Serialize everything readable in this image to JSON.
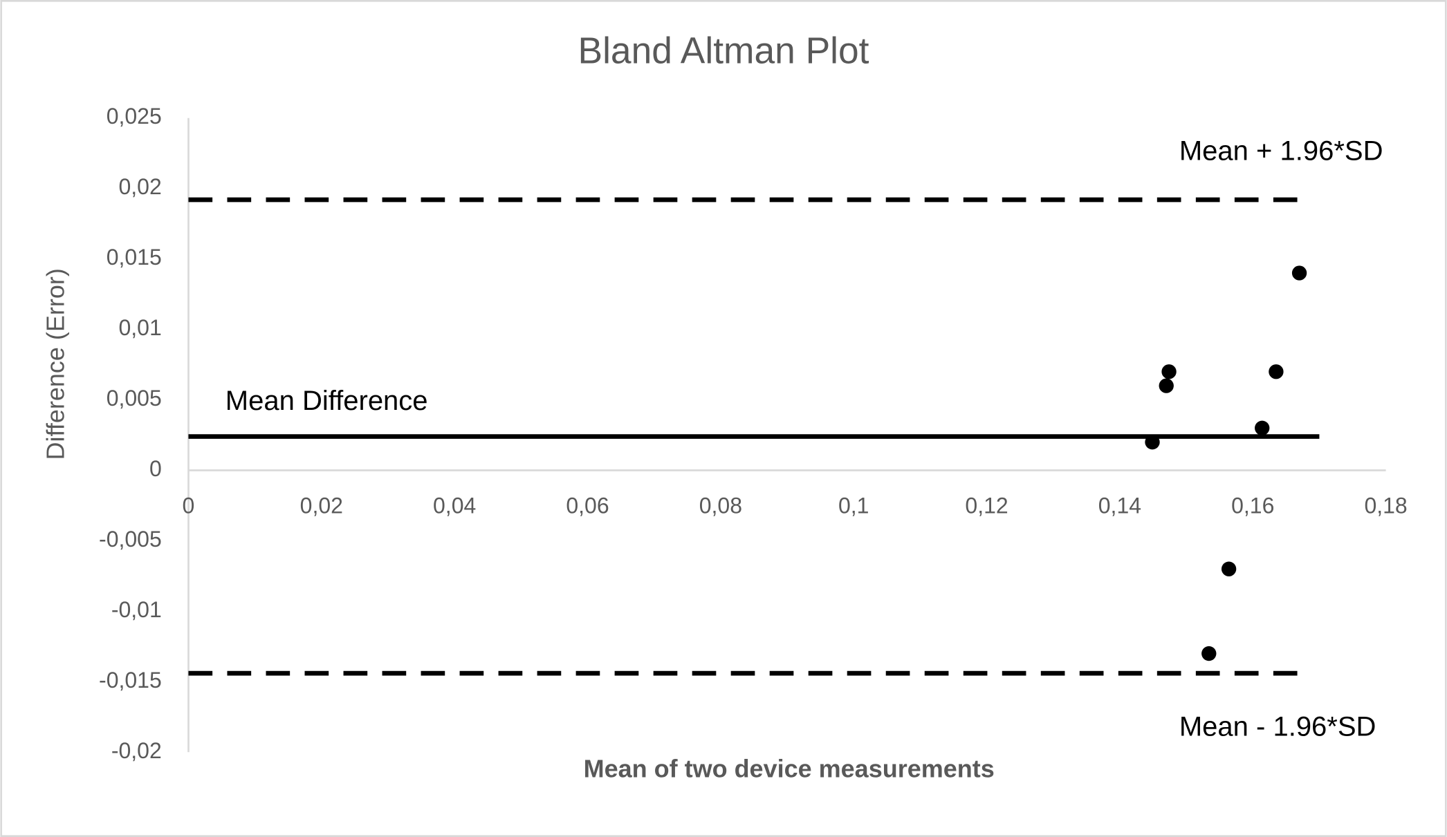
{
  "chart_data": {
    "type": "scatter",
    "title": "Bland Altman Plot",
    "x_label": "Mean of two device measurements",
    "y_label": "Difference (Error)",
    "x": [
      0.1449,
      0.147,
      0.1474,
      0.1534,
      0.1564,
      0.1614,
      0.1635,
      0.167
    ],
    "values": [
      0.002,
      0.006,
      0.007,
      -0.013,
      -0.007,
      0.003,
      0.007,
      0.014
    ],
    "color": "#000000",
    "xlim": [
      0,
      0.18
    ],
    "ylim": [
      -0.02,
      0.025
    ],
    "xticks": [
      0,
      {
        "value": 0.02,
        "label": "0,02"
      },
      {
        "value": 0.04,
        "label": "0,04"
      },
      {
        "value": 0.06,
        "label": "0,06"
      },
      {
        "value": 0.08,
        "label": "0,08"
      },
      {
        "value": 0.1,
        "label": "0,1"
      },
      {
        "value": 0.12,
        "label": "0,12"
      },
      {
        "value": 0.14,
        "label": "0,14"
      },
      {
        "value": 0.16,
        "label": "0,16"
      },
      {
        "value": 0.18,
        "label": "0,18"
      }
    ],
    "yticks": [
      {
        "value": -0.02,
        "label": "-0,02"
      },
      {
        "value": -0.015,
        "label": "-0,015"
      },
      {
        "value": -0.01,
        "label": "-0,01"
      },
      {
        "value": -0.005,
        "label": "-0,005"
      },
      0,
      {
        "value": 0.005,
        "label": "0,005"
      },
      {
        "value": 0.01,
        "label": "0,01"
      },
      {
        "value": 0.015,
        "label": "0,015"
      },
      {
        "value": 0.02,
        "label": "0,02"
      },
      {
        "value": 0.025,
        "label": "0,025"
      }
    ],
    "grid": false,
    "lines": [
      {
        "name": "Mean + 1.96*SD",
        "y": 0.0192,
        "x_end": 0.167,
        "style": "dashed"
      },
      {
        "name": "Mean Difference",
        "y": 0.0024,
        "x_end": 0.17,
        "style": "solid"
      },
      {
        "name": "Mean - 1.96*SD",
        "y": -0.0144,
        "x_end": 0.167,
        "style": "dashed"
      }
    ]
  }
}
